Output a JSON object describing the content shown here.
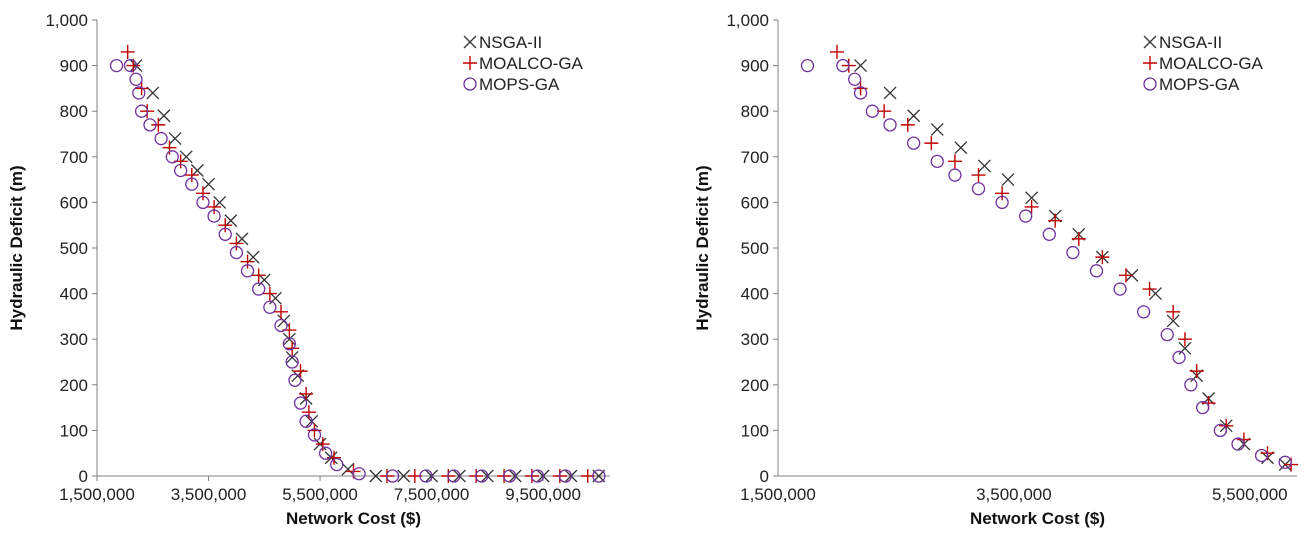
{
  "colors": {
    "nsga": "#333333",
    "moalco": "#c00000",
    "mops": "#7030a0",
    "axis": "#808080"
  },
  "chart_data": [
    {
      "type": "scatter",
      "xlabel": "Network Cost ($)",
      "ylabel": "Hydraulic Deficit (m)",
      "xlim": [
        1500000,
        10700000
      ],
      "ylim": [
        0,
        1000
      ],
      "x_ticks": [
        1500000,
        3500000,
        5500000,
        7500000,
        9500000
      ],
      "x_tick_labels": [
        "1,500,000",
        "3,500,000",
        "5,500,000",
        "7,500,000",
        "9,500,000"
      ],
      "y_ticks": [
        0,
        100,
        200,
        300,
        400,
        500,
        600,
        700,
        800,
        900,
        1000
      ],
      "y_tick_labels": [
        "0",
        "100",
        "200",
        "300",
        "400",
        "500",
        "600",
        "700",
        "800",
        "900",
        "1,000"
      ],
      "grid": false,
      "legend": "top-right",
      "series": [
        {
          "name": "NSGA-II",
          "marker": "x",
          "points": [
            [
              2200000,
              900
            ],
            [
              2500000,
              840
            ],
            [
              2700000,
              790
            ],
            [
              2900000,
              740
            ],
            [
              3100000,
              700
            ],
            [
              3300000,
              670
            ],
            [
              3500000,
              640
            ],
            [
              3700000,
              600
            ],
            [
              3900000,
              560
            ],
            [
              4100000,
              520
            ],
            [
              4300000,
              480
            ],
            [
              4500000,
              430
            ],
            [
              4700000,
              390
            ],
            [
              4850000,
              340
            ],
            [
              4950000,
              300
            ],
            [
              5000000,
              260
            ],
            [
              5100000,
              220
            ],
            [
              5250000,
              170
            ],
            [
              5350000,
              120
            ],
            [
              5500000,
              70
            ],
            [
              5700000,
              40
            ],
            [
              6000000,
              15
            ],
            [
              6500000,
              0
            ],
            [
              7000000,
              0
            ],
            [
              7500000,
              0
            ],
            [
              8000000,
              0
            ],
            [
              8500000,
              0
            ],
            [
              9000000,
              0
            ],
            [
              9500000,
              0
            ],
            [
              10000000,
              0
            ],
            [
              10500000,
              0
            ]
          ]
        },
        {
          "name": "MOALCO-GA",
          "marker": "plus",
          "points": [
            [
              2050000,
              930
            ],
            [
              2150000,
              900
            ],
            [
              2300000,
              850
            ],
            [
              2400000,
              800
            ],
            [
              2600000,
              770
            ],
            [
              2800000,
              720
            ],
            [
              3000000,
              690
            ],
            [
              3200000,
              660
            ],
            [
              3400000,
              620
            ],
            [
              3600000,
              590
            ],
            [
              3800000,
              550
            ],
            [
              4000000,
              510
            ],
            [
              4200000,
              470
            ],
            [
              4400000,
              440
            ],
            [
              4600000,
              400
            ],
            [
              4800000,
              360
            ],
            [
              4950000,
              320
            ],
            [
              5000000,
              280
            ],
            [
              5150000,
              230
            ],
            [
              5250000,
              180
            ],
            [
              5300000,
              140
            ],
            [
              5400000,
              100
            ],
            [
              5550000,
              70
            ],
            [
              5750000,
              40
            ],
            [
              6100000,
              10
            ],
            [
              6700000,
              0
            ],
            [
              7200000,
              0
            ],
            [
              7800000,
              0
            ],
            [
              8300000,
              0
            ],
            [
              8800000,
              0
            ],
            [
              9300000,
              0
            ],
            [
              9800000,
              0
            ],
            [
              10300000,
              0
            ]
          ]
        },
        {
          "name": "MOPS-GA",
          "marker": "circle",
          "points": [
            [
              1850000,
              900
            ],
            [
              2100000,
              900
            ],
            [
              2200000,
              870
            ],
            [
              2250000,
              840
            ],
            [
              2300000,
              800
            ],
            [
              2450000,
              770
            ],
            [
              2650000,
              740
            ],
            [
              2850000,
              700
            ],
            [
              3000000,
              670
            ],
            [
              3200000,
              640
            ],
            [
              3400000,
              600
            ],
            [
              3600000,
              570
            ],
            [
              3800000,
              530
            ],
            [
              4000000,
              490
            ],
            [
              4200000,
              450
            ],
            [
              4400000,
              410
            ],
            [
              4600000,
              370
            ],
            [
              4800000,
              330
            ],
            [
              4950000,
              290
            ],
            [
              5000000,
              250
            ],
            [
              5050000,
              210
            ],
            [
              5150000,
              160
            ],
            [
              5250000,
              120
            ],
            [
              5400000,
              90
            ],
            [
              5600000,
              50
            ],
            [
              5800000,
              25
            ],
            [
              6200000,
              5
            ],
            [
              6800000,
              0
            ],
            [
              7400000,
              0
            ],
            [
              7900000,
              0
            ],
            [
              8400000,
              0
            ],
            [
              8900000,
              0
            ],
            [
              9400000,
              0
            ],
            [
              9900000,
              0
            ],
            [
              10500000,
              0
            ]
          ]
        }
      ]
    },
    {
      "type": "scatter",
      "xlabel": "Network Cost ($)",
      "ylabel": "Hydraulic Deficit (m)",
      "xlim": [
        1500000,
        5900000
      ],
      "ylim": [
        0,
        1000
      ],
      "x_ticks": [
        1500000,
        3500000,
        5500000
      ],
      "x_tick_labels": [
        "1,500,000",
        "3,500,000",
        "5,500,000"
      ],
      "y_ticks": [
        0,
        100,
        200,
        300,
        400,
        500,
        600,
        700,
        800,
        900,
        1000
      ],
      "y_tick_labels": [
        "0",
        "100",
        "200",
        "300",
        "400",
        "500",
        "600",
        "700",
        "800",
        "900",
        "1,000"
      ],
      "grid": false,
      "legend": "top-right",
      "series": [
        {
          "name": "NSGA-II",
          "marker": "x",
          "points": [
            [
              2200000,
              900
            ],
            [
              2450000,
              840
            ],
            [
              2650000,
              790
            ],
            [
              2850000,
              760
            ],
            [
              3050000,
              720
            ],
            [
              3250000,
              680
            ],
            [
              3450000,
              650
            ],
            [
              3650000,
              610
            ],
            [
              3850000,
              570
            ],
            [
              4050000,
              530
            ],
            [
              4250000,
              480
            ],
            [
              4500000,
              440
            ],
            [
              4700000,
              400
            ],
            [
              4850000,
              340
            ],
            [
              4950000,
              280
            ],
            [
              5050000,
              220
            ],
            [
              5150000,
              170
            ],
            [
              5300000,
              110
            ],
            [
              5450000,
              70
            ],
            [
              5650000,
              40
            ],
            [
              5800000,
              25
            ]
          ]
        },
        {
          "name": "MOALCO-GA",
          "marker": "plus",
          "points": [
            [
              2000000,
              930
            ],
            [
              2100000,
              900
            ],
            [
              2200000,
              850
            ],
            [
              2400000,
              800
            ],
            [
              2600000,
              770
            ],
            [
              2800000,
              730
            ],
            [
              3000000,
              690
            ],
            [
              3200000,
              660
            ],
            [
              3400000,
              620
            ],
            [
              3650000,
              590
            ],
            [
              3850000,
              560
            ],
            [
              4050000,
              520
            ],
            [
              4250000,
              480
            ],
            [
              4450000,
              440
            ],
            [
              4650000,
              410
            ],
            [
              4850000,
              360
            ],
            [
              4950000,
              300
            ],
            [
              5050000,
              230
            ],
            [
              5150000,
              160
            ],
            [
              5300000,
              110
            ],
            [
              5450000,
              80
            ],
            [
              5650000,
              50
            ],
            [
              5850000,
              25
            ]
          ]
        },
        {
          "name": "MOPS-GA",
          "marker": "circle",
          "points": [
            [
              1750000,
              900
            ],
            [
              2050000,
              900
            ],
            [
              2150000,
              870
            ],
            [
              2200000,
              840
            ],
            [
              2300000,
              800
            ],
            [
              2450000,
              770
            ],
            [
              2650000,
              730
            ],
            [
              2850000,
              690
            ],
            [
              3000000,
              660
            ],
            [
              3200000,
              630
            ],
            [
              3400000,
              600
            ],
            [
              3600000,
              570
            ],
            [
              3800000,
              530
            ],
            [
              4000000,
              490
            ],
            [
              4200000,
              450
            ],
            [
              4400000,
              410
            ],
            [
              4600000,
              360
            ],
            [
              4800000,
              310
            ],
            [
              4900000,
              260
            ],
            [
              5000000,
              200
            ],
            [
              5100000,
              150
            ],
            [
              5250000,
              100
            ],
            [
              5400000,
              70
            ],
            [
              5600000,
              45
            ],
            [
              5800000,
              30
            ]
          ]
        }
      ]
    }
  ]
}
